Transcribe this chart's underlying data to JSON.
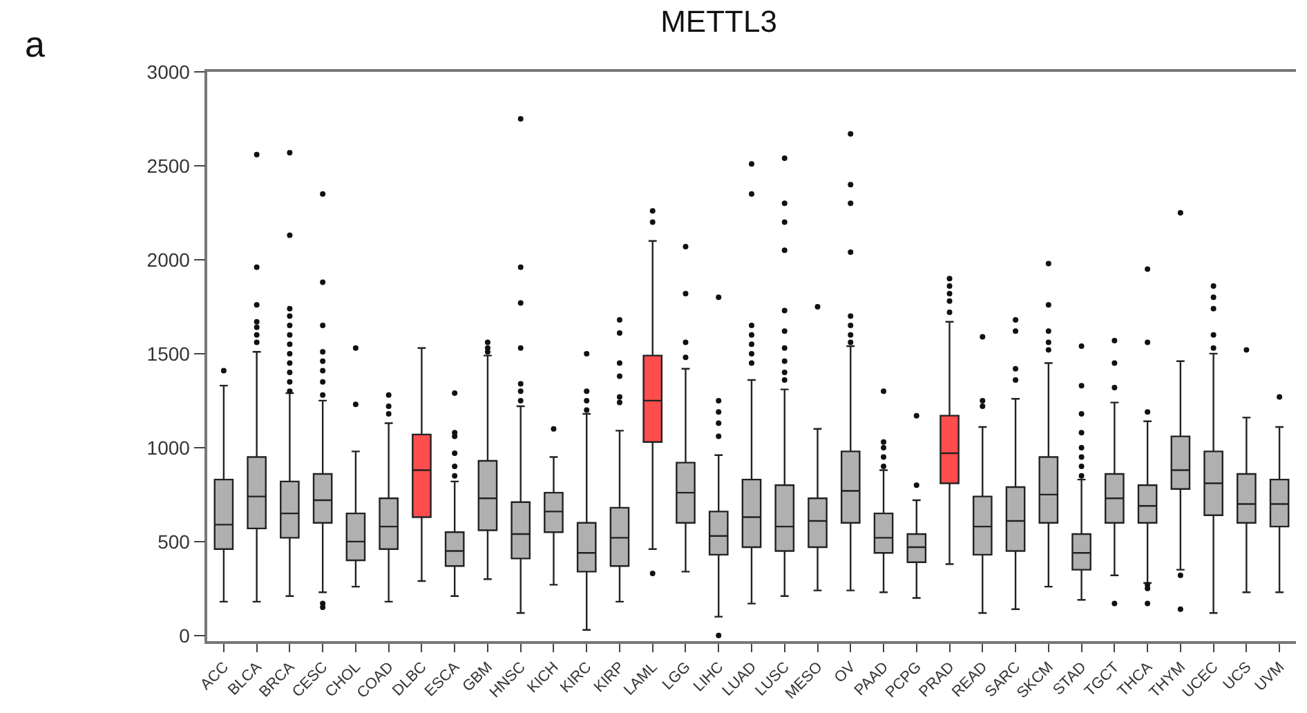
{
  "chart_data": {
    "type": "box",
    "title": "METTL3",
    "annotations": [
      "a"
    ],
    "categories": [
      "ACC",
      "BLCA",
      "BRCA",
      "CESC",
      "CHOL",
      "COAD",
      "DLBC",
      "ESCA",
      "GBM",
      "HNSC",
      "KICH",
      "KIRC",
      "KIRP",
      "LAML",
      "LGG",
      "LIHC",
      "LUAD",
      "LUSC",
      "MESO",
      "OV",
      "PAAD",
      "PCPG",
      "PRAD",
      "READ",
      "SARC",
      "SKCM",
      "STAD",
      "TGCT",
      "THCA",
      "THYM",
      "UCEC",
      "UCS",
      "UVM"
    ],
    "colors": [
      "#b0b0b0",
      "#b0b0b0",
      "#b0b0b0",
      "#b0b0b0",
      "#b0b0b0",
      "#b0b0b0",
      "#ff4d4d",
      "#b0b0b0",
      "#b0b0b0",
      "#b0b0b0",
      "#b0b0b0",
      "#b0b0b0",
      "#b0b0b0",
      "#ff4d4d",
      "#b0b0b0",
      "#b0b0b0",
      "#b0b0b0",
      "#b0b0b0",
      "#b0b0b0",
      "#b0b0b0",
      "#b0b0b0",
      "#b0b0b0",
      "#ff4d4d",
      "#b0b0b0",
      "#b0b0b0",
      "#b0b0b0",
      "#b0b0b0",
      "#b0b0b0",
      "#b0b0b0",
      "#b0b0b0",
      "#b0b0b0",
      "#b0b0b0",
      "#b0b0b0"
    ],
    "boxes": [
      {
        "low": 180,
        "q1": 460,
        "median": 590,
        "q3": 830,
        "high": 1330,
        "outliers": [
          1410
        ]
      },
      {
        "low": 180,
        "q1": 570,
        "median": 740,
        "q3": 950,
        "high": 1510,
        "outliers": [
          1560,
          1600,
          1640,
          1670,
          1760,
          1960,
          2560
        ]
      },
      {
        "low": 210,
        "q1": 520,
        "median": 650,
        "q3": 820,
        "high": 1290,
        "outliers": [
          1300,
          1350,
          1400,
          1450,
          1500,
          1550,
          1600,
          1650,
          1700,
          1740,
          2130,
          2570
        ]
      },
      {
        "low": 230,
        "q1": 600,
        "median": 720,
        "q3": 860,
        "high": 1250,
        "outliers": [
          150,
          170,
          1280,
          1350,
          1410,
          1460,
          1510,
          1650,
          1880,
          2350
        ]
      },
      {
        "low": 260,
        "q1": 400,
        "median": 500,
        "q3": 650,
        "high": 980,
        "outliers": [
          1230,
          1530
        ]
      },
      {
        "low": 180,
        "q1": 460,
        "median": 580,
        "q3": 730,
        "high": 1130,
        "outliers": [
          1180,
          1220,
          1280
        ]
      },
      {
        "low": 290,
        "q1": 630,
        "median": 880,
        "q3": 1070,
        "high": 1530
      },
      {
        "low": 210,
        "q1": 370,
        "median": 450,
        "q3": 550,
        "high": 820,
        "outliers": [
          850,
          900,
          970,
          1060,
          1080,
          1290
        ]
      },
      {
        "low": 300,
        "q1": 560,
        "median": 730,
        "q3": 930,
        "high": 1490,
        "outliers": [
          1510,
          1530,
          1560
        ]
      },
      {
        "low": 120,
        "q1": 410,
        "median": 540,
        "q3": 710,
        "high": 1220,
        "outliers": [
          1250,
          1300,
          1340,
          1530,
          1770,
          1960,
          2750
        ]
      },
      {
        "low": 270,
        "q1": 550,
        "median": 660,
        "q3": 760,
        "high": 950,
        "outliers": [
          1100
        ]
      },
      {
        "low": 30,
        "q1": 340,
        "median": 440,
        "q3": 600,
        "high": 1180,
        "outliers": [
          1200,
          1250,
          1300,
          1500
        ]
      },
      {
        "low": 180,
        "q1": 370,
        "median": 520,
        "q3": 680,
        "high": 1090,
        "outliers": [
          1240,
          1270,
          1380,
          1450,
          1610,
          1680
        ]
      },
      {
        "low": 460,
        "q1": 1030,
        "median": 1250,
        "q3": 1490,
        "high": 2100,
        "outliers": [
          330,
          2200,
          2260
        ]
      },
      {
        "low": 340,
        "q1": 600,
        "median": 760,
        "q3": 920,
        "high": 1420,
        "outliers": [
          1480,
          1560,
          1820,
          2070
        ]
      },
      {
        "low": 100,
        "q1": 430,
        "median": 530,
        "q3": 660,
        "high": 960,
        "outliers": [
          0,
          1060,
          1130,
          1190,
          1250,
          1800
        ]
      },
      {
        "low": 170,
        "q1": 470,
        "median": 630,
        "q3": 830,
        "high": 1360,
        "outliers": [
          1450,
          1500,
          1550,
          1600,
          1650,
          2350,
          2510
        ]
      },
      {
        "low": 210,
        "q1": 450,
        "median": 580,
        "q3": 800,
        "high": 1310,
        "outliers": [
          1360,
          1400,
          1460,
          1530,
          1620,
          1730,
          2050,
          2200,
          2300,
          2540
        ]
      },
      {
        "low": 240,
        "q1": 470,
        "median": 610,
        "q3": 730,
        "high": 1100,
        "outliers": [
          1750
        ]
      },
      {
        "low": 240,
        "q1": 600,
        "median": 770,
        "q3": 980,
        "high": 1540,
        "outliers": [
          1560,
          1600,
          1650,
          1700,
          2040,
          2300,
          2400,
          2670
        ]
      },
      {
        "low": 230,
        "q1": 440,
        "median": 520,
        "q3": 650,
        "high": 880,
        "outliers": [
          900,
          950,
          1000,
          1030,
          1300
        ]
      },
      {
        "low": 200,
        "q1": 390,
        "median": 470,
        "q3": 540,
        "high": 720,
        "outliers": [
          800,
          1170
        ]
      },
      {
        "low": 380,
        "q1": 810,
        "median": 970,
        "q3": 1170,
        "high": 1670,
        "outliers": [
          1720,
          1780,
          1820,
          1860,
          1900
        ]
      },
      {
        "low": 120,
        "q1": 430,
        "median": 580,
        "q3": 740,
        "high": 1110,
        "outliers": [
          1220,
          1250,
          1590
        ]
      },
      {
        "low": 140,
        "q1": 450,
        "median": 610,
        "q3": 790,
        "high": 1260,
        "outliers": [
          1360,
          1420,
          1620,
          1680
        ]
      },
      {
        "low": 260,
        "q1": 600,
        "median": 750,
        "q3": 950,
        "high": 1450,
        "outliers": [
          1520,
          1560,
          1620,
          1760,
          1980
        ]
      },
      {
        "low": 190,
        "q1": 350,
        "median": 440,
        "q3": 540,
        "high": 830,
        "outliers": [
          850,
          900,
          950,
          1000,
          1080,
          1180,
          1330,
          1540
        ]
      },
      {
        "low": 320,
        "q1": 600,
        "median": 730,
        "q3": 860,
        "high": 1240,
        "outliers": [
          170,
          1320,
          1450,
          1570
        ]
      },
      {
        "low": 280,
        "q1": 600,
        "median": 690,
        "q3": 800,
        "high": 1140,
        "outliers": [
          170,
          250,
          270,
          1190,
          1560,
          1950
        ]
      },
      {
        "low": 350,
        "q1": 780,
        "median": 880,
        "q3": 1060,
        "high": 1460,
        "outliers": [
          140,
          320,
          2250
        ]
      },
      {
        "low": 120,
        "q1": 640,
        "median": 810,
        "q3": 980,
        "high": 1500,
        "outliers": [
          1530,
          1600,
          1740,
          1800,
          1860
        ]
      },
      {
        "low": 230,
        "q1": 600,
        "median": 700,
        "q3": 860,
        "high": 1160,
        "outliers": [
          1520
        ]
      },
      {
        "low": 230,
        "q1": 580,
        "median": 700,
        "q3": 830,
        "high": 1110,
        "outliers": [
          1270
        ]
      }
    ],
    "ylim": [
      -30,
      3000
    ],
    "yticks": [
      0,
      500,
      1000,
      1500,
      2000,
      2500,
      3000
    ]
  }
}
